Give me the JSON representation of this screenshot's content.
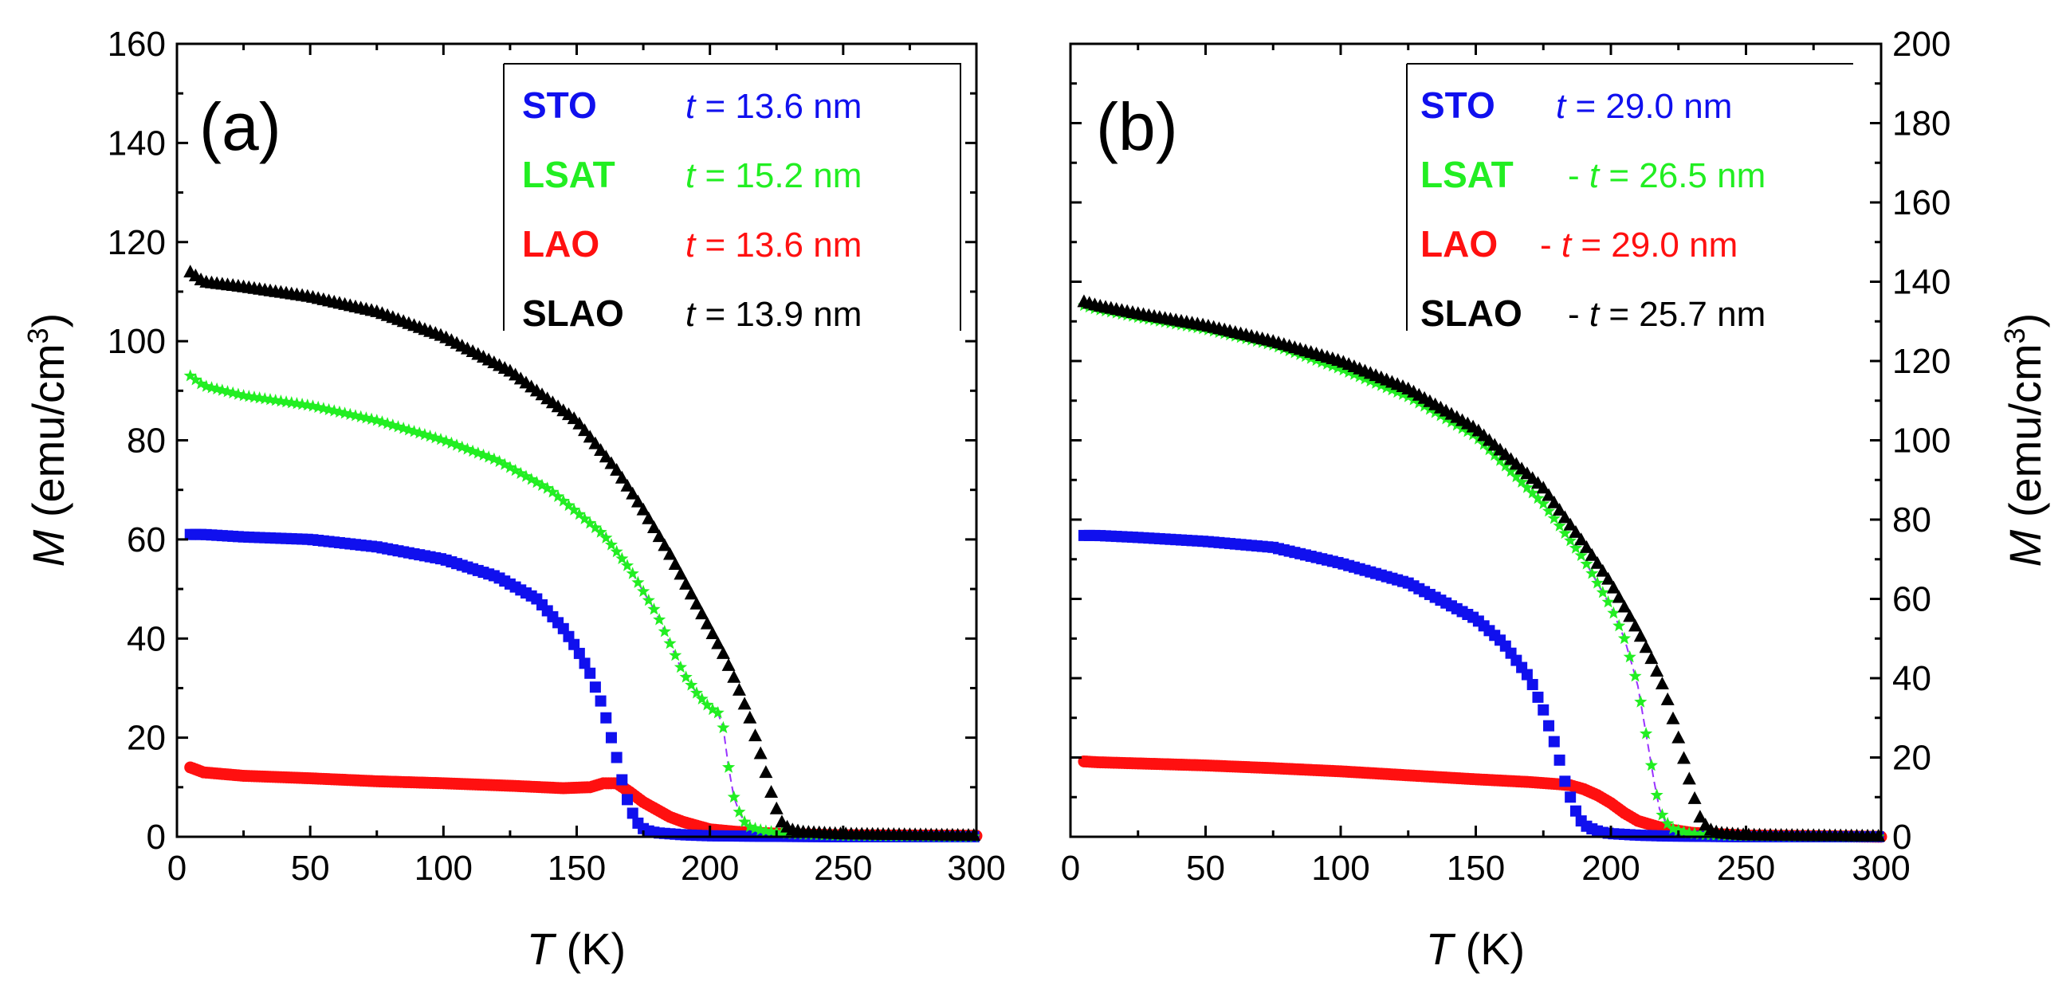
{
  "figure": {
    "x_axis_label_var": "T",
    "x_axis_label_unit": " (K)",
    "y_axis_label_var": "M",
    "y_axis_label_unit": " (emu/cm",
    "y_axis_label_sup": "3",
    "y_axis_label_close": ")"
  },
  "colors": {
    "STO": "#1010ee",
    "LSAT": "#22ee22",
    "LAO": "#ff1010",
    "SLAO": "#000000",
    "LSAT_fit": "#9933ff"
  },
  "chart_data": [
    {
      "type": "scatter",
      "panel_label": "(a)",
      "xlabel": "T (K)",
      "ylabel": "M (emu/cm3)",
      "y_axis_side": "left",
      "xlim": [
        0,
        300
      ],
      "ylim": [
        0,
        160
      ],
      "xticks": [
        0,
        50,
        100,
        150,
        200,
        250,
        300
      ],
      "yticks": [
        0,
        20,
        40,
        60,
        80,
        100,
        120,
        140,
        160
      ],
      "legend_position": "top-right",
      "legend": [
        {
          "name": "STO",
          "key": "STO",
          "prefix": "t",
          "value": " = 13.6 nm"
        },
        {
          "name": "LSAT",
          "key": "LSAT",
          "prefix": "t",
          "value": " = 15.2 nm"
        },
        {
          "name": "LAO",
          "key": "LAO",
          "prefix": "t",
          "value": " = 13.6 nm"
        },
        {
          "name": "SLAO",
          "key": "SLAO",
          "prefix": "t",
          "value": " = 13.9 nm"
        }
      ],
      "series": [
        {
          "name": "STO",
          "marker": "square",
          "x": [
            5,
            10,
            25,
            50,
            75,
            100,
            120,
            135,
            145,
            150,
            155,
            160,
            163,
            166,
            168,
            170,
            172,
            174,
            176,
            180,
            190,
            200,
            220,
            250,
            300
          ],
          "y": [
            61,
            61,
            60.5,
            60,
            58.5,
            56,
            52.5,
            48,
            42,
            38,
            33,
            26,
            20,
            14,
            9,
            6,
            3.5,
            2,
            1.3,
            0.8,
            0.4,
            0.2,
            0.1,
            0,
            0
          ]
        },
        {
          "name": "LSAT",
          "marker": "star",
          "fit": true,
          "x": [
            5,
            10,
            25,
            50,
            75,
            100,
            120,
            140,
            160,
            170,
            180,
            190,
            195,
            200,
            203,
            205,
            207,
            209,
            211,
            213,
            215,
            220,
            230,
            250,
            300
          ],
          "y": [
            93,
            91,
            89,
            87,
            84,
            80,
            76,
            70,
            61,
            54,
            45,
            33,
            29,
            26,
            25,
            22,
            14,
            8,
            5,
            3,
            2,
            1.2,
            0.6,
            0.2,
            0
          ]
        },
        {
          "name": "LAO",
          "marker": "circle",
          "x": [
            5,
            10,
            25,
            50,
            75,
            100,
            125,
            145,
            155,
            160,
            165,
            170,
            175,
            180,
            185,
            190,
            200,
            210,
            230,
            250,
            300
          ],
          "y": [
            14,
            13,
            12.3,
            11.8,
            11.2,
            10.8,
            10.3,
            9.8,
            10,
            10.8,
            10.8,
            9,
            7,
            5.5,
            4,
            3,
            1.5,
            1,
            0.5,
            0.3,
            0.2
          ]
        },
        {
          "name": "SLAO",
          "marker": "triangle",
          "x": [
            5,
            10,
            25,
            50,
            75,
            100,
            125,
            150,
            165,
            175,
            185,
            195,
            200,
            205,
            210,
            215,
            220,
            224,
            227,
            230,
            235,
            250,
            300
          ],
          "y": [
            114,
            112,
            111,
            109,
            106,
            101,
            94,
            84,
            74,
            66,
            57,
            47,
            42,
            37,
            31,
            24,
            15,
            7,
            3,
            1.5,
            1,
            0.6,
            0.3
          ]
        }
      ]
    },
    {
      "type": "scatter",
      "panel_label": "(b)",
      "xlabel": "T (K)",
      "ylabel": "M (emu/cm3)",
      "y_axis_side": "right",
      "xlim": [
        0,
        300
      ],
      "ylim": [
        0,
        200
      ],
      "xticks": [
        0,
        50,
        100,
        150,
        200,
        250,
        300
      ],
      "yticks": [
        0,
        20,
        40,
        60,
        80,
        100,
        120,
        140,
        160,
        180,
        200
      ],
      "legend_position": "top-right",
      "legend": [
        {
          "name": "STO",
          "key": "STO",
          "prefix": "t",
          "value": " = 29.0 nm",
          "sep": "  "
        },
        {
          "name": "LSAT",
          "key": "LSAT",
          "prefix": "t",
          "value": " = 26.5 nm",
          "sep": " - "
        },
        {
          "name": "LAO",
          "key": "LAO",
          "prefix": "t",
          "value": " = 29.0 nm",
          "sep": " - "
        },
        {
          "name": "SLAO",
          "key": "SLAO",
          "prefix": "t",
          "value": " = 25.7 nm",
          "sep": " - "
        }
      ],
      "series": [
        {
          "name": "STO",
          "marker": "square",
          "x": [
            5,
            10,
            25,
            50,
            75,
            100,
            125,
            150,
            160,
            170,
            175,
            180,
            183,
            186,
            188,
            190,
            193,
            196,
            200,
            210,
            220,
            250,
            300
          ],
          "y": [
            76,
            76,
            75.5,
            74.5,
            73,
            69,
            64,
            55,
            49,
            40,
            32,
            22,
            14,
            8,
            5,
            3,
            2,
            1.2,
            0.8,
            0.4,
            0.2,
            0,
            0
          ]
        },
        {
          "name": "LSAT",
          "marker": "star",
          "fit": true,
          "x": [
            5,
            10,
            25,
            50,
            75,
            100,
            125,
            150,
            175,
            190,
            200,
            205,
            208,
            210,
            212,
            214,
            216,
            218,
            220,
            223,
            228,
            235,
            250,
            300
          ],
          "y": [
            134,
            133,
            131,
            128,
            124,
            118,
            111,
            101,
            84,
            70,
            58,
            50,
            43,
            38,
            30,
            22,
            14,
            7,
            4,
            2,
            1,
            0.5,
            0.2,
            0
          ]
        },
        {
          "name": "LAO",
          "marker": "circle",
          "x": [
            5,
            10,
            25,
            50,
            75,
            100,
            125,
            150,
            170,
            180,
            185,
            190,
            195,
            200,
            205,
            210,
            220,
            230,
            250,
            300
          ],
          "y": [
            19,
            18.8,
            18.5,
            18,
            17.3,
            16.5,
            15.5,
            14.5,
            13.8,
            13.3,
            13,
            12,
            10.5,
            8.5,
            6,
            4,
            2,
            1,
            0.3,
            0
          ]
        },
        {
          "name": "SLAO",
          "marker": "triangle",
          "x": [
            5,
            10,
            25,
            50,
            75,
            100,
            125,
            150,
            175,
            190,
            200,
            210,
            215,
            220,
            225,
            230,
            233,
            236,
            240,
            250,
            300
          ],
          "y": [
            135,
            134,
            132,
            129,
            125,
            120,
            113,
            103,
            88,
            74,
            64,
            52,
            45,
            37,
            25,
            12,
            5,
            2,
            1,
            0.5,
            0.2
          ]
        }
      ]
    }
  ]
}
